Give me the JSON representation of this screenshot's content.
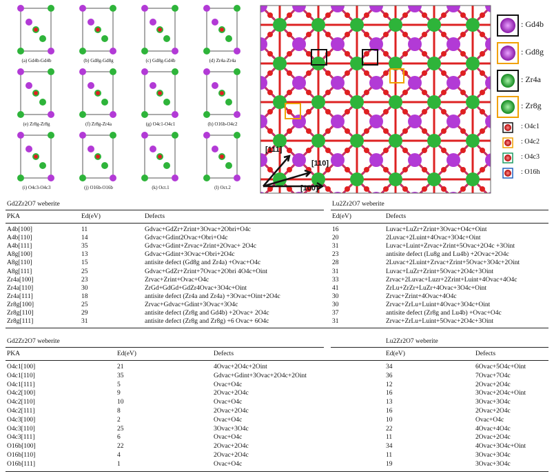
{
  "figure": {
    "panels": [
      "(a) Gd4b-Gd4b",
      "(b) Gd8g-Gd8g",
      "(c) Gd8g-Gd4b",
      "(d) Zr4a-Zr4a",
      "(e) Zr8g-Zr8g",
      "(f) Zr8g-Zr4a",
      "(g) O4c1-O4c1",
      "(h) O16b-O4c2",
      "(i) O4c3-O4c3",
      "(j) O16b-O16b",
      "(k) Oct.1",
      "(l) Oct.2"
    ],
    "directions": [
      "[111]",
      "[110]",
      "[100]"
    ],
    "legend": [
      ": Gd4b",
      ": Gd8g",
      ": Zr4a",
      ": Zr8g",
      ": O4c1",
      ": O4c2",
      ": O4c3",
      ": O16h"
    ]
  },
  "table1": {
    "left_title": "Gd2Zr2O7 weberite",
    "right_title": "Lu2Zr2O7 weberite",
    "headers": [
      "PKA",
      "Ed(eV)",
      "Defects",
      "Ed(eV)",
      "Defects"
    ],
    "rows": [
      [
        "A4b[100]",
        11,
        "Gdvac+GdZr+Zrint+3Ovac+2Obri+O4c",
        16,
        "Luvac+LuZr+Zrint+3Ovac+O4c+Oint"
      ],
      [
        "A4b[110]",
        14,
        "Gdvac+Gdint2Ovac+Obri+O4c",
        20,
        "2Luvac+2Luint+4Ovac+3O4c+Oint"
      ],
      [
        "A4b[111]",
        35,
        "Gdvac+Gdint+Zrvac+Zrint+2Ovac+ 2O4c",
        31,
        "Luvac+Luint+Zrvac+Zrint+5Ovac+2O4c +3Oint"
      ],
      [
        "A8g[100]",
        13,
        "Gdvac+Gdint+3Ovac+Obri+2O4c",
        23,
        "antisite defect (Lu8g and Lu4b) +2Ovac+2O4c"
      ],
      [
        "A8g[110]",
        15,
        "antisite defect (Gd8g and Zr4a) +Ovac+O4c",
        28,
        "2Luvac+2Luint+Zrvac+Zrint+5Ovac+3O4c+2Oint"
      ],
      [
        "A8g[111]",
        25,
        "Gdvac+GdZr+Zrint+7Ovac+2Obri 4O4c+Oint",
        31,
        "Luvac+LuZr+Zrint+5Ovac+2O4c+3Oint"
      ],
      [
        "Zr4a[100]",
        23,
        "Zrvac+Zrint+Ovac+O4c",
        33,
        "Zrvac+2Luvac+Luzr+2Zrint+Luint+4Ovac+4O4c"
      ],
      [
        "Zr4a[110]",
        30,
        "ZrGd+GdGd+GdZr4Ovac+3O4c+Oint",
        41,
        "ZrLu+ZrZr+LuZr+4Ovac+3O4c+Oint"
      ],
      [
        "Zr4a[111]",
        18,
        "antisite defect (Zr4a and Zr4a) +3Ovac+Oint+2O4c",
        30,
        "Zrvac+Zrint+4Ovac+4O4c"
      ],
      [
        "Zr8g[100]",
        25,
        "Zrvac+Gdvac+Gdint+3Ovac+3O4c",
        30,
        "Zrvac+ZrLu+Luint+4Ovac+3O4c+Oint"
      ],
      [
        "Zr8g[110]",
        29,
        "antisite defect (Zr8g and Gd4b) +2Ovac+ 2O4c",
        37,
        "antisite defect (Zr8g and Lu4b) +Ovac+O4c"
      ],
      [
        "Zr8g[111]",
        31,
        "antisite defect (Zr8g and Zr8g) +6 Ovac+ 6O4c",
        31,
        "Zrvac+ZrLu+Luint+5Ovac+2O4c+3Oint"
      ]
    ]
  },
  "table2": {
    "left_title": "Gd2Zr2O7 weberite",
    "right_title": "Lu2Zr2O7 weberite",
    "headers": [
      "PKA",
      "Ed(eV)",
      "Defects",
      "Ed(eV)",
      "Defects"
    ],
    "rows": [
      [
        "O4c1[100]",
        21,
        "4Ovac+2O4c+2Oint",
        34,
        "6Ovac+5O4c+Oint"
      ],
      [
        "O4c1[110]",
        35,
        "Gdvac+Gdint+3Ovac+2O4c+2Oint",
        36,
        "7Ovac+7O4c"
      ],
      [
        "O4c1[111]",
        5,
        "Ovac+O4c",
        12,
        "2Ovac+2O4c"
      ],
      [
        "O4c2[100]",
        9,
        "2Ovac+2O4c",
        16,
        "3Ovac+2O4c+Oint"
      ],
      [
        "O4c2[110]",
        10,
        "Ovac+O4c",
        13,
        "3Ovac+3O4c"
      ],
      [
        "O4c2[111]",
        8,
        "2Ovac+2O4c",
        16,
        "2Ovac+2O4c"
      ],
      [
        "O4c3[100]",
        2,
        "Ovac+O4c",
        10,
        "Ovac+O4c"
      ],
      [
        "O4c3[110]",
        25,
        "3Ovac+3O4c",
        22,
        "4Ovac+4O4c"
      ],
      [
        "O4c3[111]",
        6,
        "Ovac+O4c",
        11,
        "2Ovac+2O4c"
      ],
      [
        "O16b[100]",
        22,
        "2Ovac+2O4c",
        34,
        "4Ovac+3O4c+Oint"
      ],
      [
        "O16b[110]",
        4,
        "2Ovac+2O4c",
        11,
        "3Ovac+3O4c"
      ],
      [
        "O16b[111]",
        1,
        "Ovac+O4c",
        19,
        "3Ovac+3O4c"
      ]
    ]
  }
}
